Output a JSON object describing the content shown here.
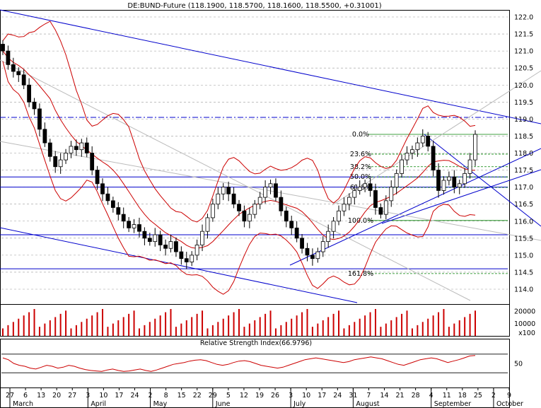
{
  "title": "DE:BUND-Future (118.1900, 118.5700, 118.1600, 118.5500, +0.31001)",
  "rsi_label": "Relative Strength Index(66.9796)",
  "price_ticks": [
    "122.0",
    "121.5",
    "121.0",
    "120.5",
    "120.0",
    "119.5",
    "119.0",
    "118.5",
    "118.0",
    "117.5",
    "117.0",
    "116.5",
    "116.0",
    "115.5",
    "115.0",
    "114.5",
    "114.0"
  ],
  "volume_ticks": [
    "20000",
    "10000"
  ],
  "volume_unit": "x100",
  "rsi_ticks": [
    "50"
  ],
  "x_day_ticks": [
    "27",
    "6",
    "13",
    "20",
    "27",
    "3",
    "10",
    "17",
    "24",
    "2",
    "8",
    "15",
    "22",
    "29",
    "5",
    "12",
    "19",
    "26",
    "3",
    "10",
    "17",
    "24",
    "31",
    "7",
    "14",
    "21",
    "28",
    "4",
    "11",
    "18",
    "25",
    "2",
    "9"
  ],
  "x_month_labels": [
    "March",
    "April",
    "May",
    "June",
    "July",
    "August",
    "September",
    "October"
  ],
  "fib_labels": [
    "0.0%",
    "23.6%",
    "38.2%",
    "50.0%",
    "61.8%",
    "100.0%",
    "161.8%"
  ],
  "colors": {
    "candle_up": "#ffffff",
    "candle_down": "#000000",
    "bollinger": "#cc0000",
    "trendline": "#0000cc",
    "fib": "#008000",
    "volume": "#cc0000",
    "rsi": "#cc0000",
    "grid": "#999999"
  },
  "chart_data": {
    "type": "candlestick",
    "title": "DE:BUND-Future (118.1900, 118.5700, 118.1600, 118.5500, +0.31001)",
    "ylim": [
      114.0,
      122.25
    ],
    "last": {
      "open": 118.19,
      "high": 118.57,
      "low": 118.16,
      "close": 118.55,
      "change": 0.31001
    },
    "close_series": [
      121.0,
      120.6,
      120.4,
      120.3,
      120.0,
      119.5,
      119.3,
      118.7,
      118.3,
      117.9,
      117.6,
      117.8,
      118.0,
      118.2,
      118.1,
      118.3,
      118.0,
      117.5,
      117.1,
      116.8,
      116.6,
      116.4,
      116.2,
      116.0,
      115.8,
      115.9,
      115.7,
      115.5,
      115.4,
      115.6,
      115.3,
      115.2,
      115.4,
      115.1,
      114.9,
      114.8,
      115.0,
      115.3,
      115.7,
      116.1,
      116.5,
      116.8,
      117.0,
      116.8,
      116.5,
      116.3,
      116.0,
      116.2,
      116.5,
      116.7,
      117.0,
      117.1,
      116.7,
      116.3,
      116.0,
      115.8,
      115.5,
      115.2,
      115.0,
      114.9,
      115.1,
      115.4,
      115.7,
      116.0,
      116.3,
      116.5,
      116.7,
      116.9,
      117.0,
      117.1,
      116.9,
      116.4,
      116.2,
      116.6,
      117.0,
      117.4,
      117.8,
      118.0,
      118.1,
      118.3,
      118.5,
      118.2,
      117.5,
      116.9,
      117.2,
      117.3,
      117.0,
      117.1,
      117.4,
      117.8,
      118.55
    ],
    "fibonacci": [
      {
        "label": "0.0%",
        "value": 118.55
      },
      {
        "label": "23.6%",
        "value": 117.97
      },
      {
        "label": "38.2%",
        "value": 117.6
      },
      {
        "label": "50.0%",
        "value": 117.3
      },
      {
        "label": "61.8%",
        "value": 116.99
      },
      {
        "label": "100.0%",
        "value": 116.02
      },
      {
        "label": "161.8%",
        "value": 114.46
      }
    ],
    "horizontal_levels": [
      119.05,
      117.3,
      117.0,
      115.6,
      114.6
    ],
    "volume_ylim": [
      0,
      25000
    ],
    "volume_unit": "x100",
    "rsi": {
      "label": "Relative Strength Index(66.9796)",
      "last": 66.9796,
      "ylim": [
        0,
        100
      ],
      "series": [
        62,
        58,
        50,
        46,
        44,
        40,
        38,
        42,
        46,
        44,
        40,
        42,
        46,
        44,
        40,
        37,
        35,
        34,
        33,
        36,
        38,
        35,
        33,
        34,
        36,
        38,
        35,
        33,
        36,
        40,
        44,
        48,
        50,
        52,
        55,
        57,
        58,
        56,
        52,
        48,
        46,
        48,
        52,
        55,
        56,
        54,
        50,
        46,
        44,
        42,
        40,
        42,
        46,
        50,
        54,
        58,
        60,
        62,
        60,
        58,
        56,
        54,
        52,
        54,
        58,
        60,
        62,
        64,
        62,
        60,
        56,
        52,
        48,
        46,
        50,
        54,
        58,
        60,
        62,
        60,
        56,
        52,
        55,
        58,
        62,
        66,
        67
      ]
    },
    "x_months": [
      "March",
      "April",
      "May",
      "June",
      "July",
      "August",
      "September",
      "October"
    ]
  }
}
